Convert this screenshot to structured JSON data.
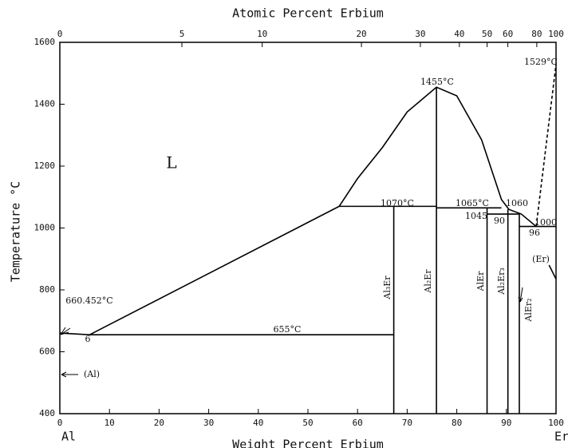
{
  "chart_data": {
    "type": "line",
    "x_label": "Weight Percent Erbium",
    "x2_label": "Atomic Percent Erbium",
    "y_label": "Temperature °C",
    "xlim": [
      0,
      100
    ],
    "xticks": [
      0,
      10,
      20,
      30,
      40,
      50,
      60,
      70,
      80,
      90,
      100
    ],
    "x2ticks": [
      0,
      5,
      10,
      20,
      30,
      40,
      50,
      60,
      80,
      100
    ],
    "ylim": [
      400,
      1600
    ],
    "yticks": [
      400,
      600,
      800,
      1000,
      1200,
      1400,
      1600
    ],
    "grid": false,
    "series": [
      {
        "color": "#000",
        "x": [
          0,
          6,
          56.3,
          60,
          65,
          70,
          75.9,
          80,
          85,
          89,
          90.5,
          93,
          96
        ],
        "values": [
          660.452,
          655,
          1070,
          1160,
          1260,
          1375,
          1455,
          1427,
          1285,
          1092,
          1060,
          1045,
          1005
        ]
      },
      {
        "color": "#000",
        "dashed": true,
        "x": [
          96,
          100
        ],
        "values": [
          1005,
          1529
        ]
      },
      {
        "color": "#000",
        "x": [
          6,
          67.3
        ],
        "values": [
          655,
          655
        ]
      },
      {
        "color": "#000",
        "x": [
          56.3,
          75.9
        ],
        "values": [
          1070,
          1070
        ]
      },
      {
        "color": "#000",
        "x": [
          75.9,
          89
        ],
        "values": [
          1065,
          1065
        ]
      },
      {
        "color": "#000",
        "x": [
          86.1,
          92.6
        ],
        "values": [
          1045,
          1045
        ]
      },
      {
        "color": "#000",
        "x": [
          92.6,
          100
        ],
        "values": [
          1005,
          1005
        ]
      },
      {
        "color": "#000",
        "x": [
          67.3,
          67.3
        ],
        "values": [
          400,
          1070
        ]
      },
      {
        "color": "#000",
        "x": [
          75.9,
          75.9
        ],
        "values": [
          400,
          1455
        ]
      },
      {
        "color": "#000",
        "x": [
          86.1,
          86.1
        ],
        "values": [
          400,
          1065
        ]
      },
      {
        "color": "#000",
        "x": [
          90.3,
          90.3
        ],
        "values": [
          400,
          1060
        ]
      },
      {
        "color": "#000",
        "x": [
          92.6,
          92.6
        ],
        "values": [
          400,
          1045
        ]
      },
      {
        "color": "#000",
        "x": [
          98.6,
          100
        ],
        "values": [
          880,
          835
        ]
      }
    ],
    "annotations": [
      "L",
      "1455°C",
      "1070°C",
      "1065°C",
      "1060",
      "1045",
      "90",
      "96",
      "1000",
      "1529°C",
      "660.452°C",
      "655°C",
      "6",
      "(Al)",
      "(Er)",
      "Al₃Er",
      "Al₂Er",
      "AlEr",
      "Al₂Er₃",
      "AlEr₂",
      "Al",
      "Er"
    ]
  }
}
